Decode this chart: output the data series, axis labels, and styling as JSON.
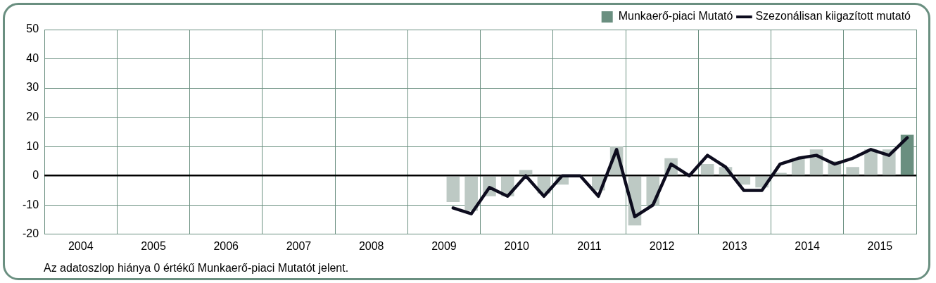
{
  "chart_data": {
    "type": "bar",
    "x": [
      2009.625,
      2009.875,
      2010.125,
      2010.375,
      2010.625,
      2010.875,
      2011.125,
      2011.375,
      2011.625,
      2011.875,
      2012.125,
      2012.375,
      2012.625,
      2012.875,
      2013.125,
      2013.375,
      2013.625,
      2013.875,
      2014.125,
      2014.375,
      2014.625,
      2014.875,
      2015.125,
      2015.375,
      2015.625,
      2015.875
    ],
    "xlim": [
      2004,
      2016
    ],
    "xticks": [
      {
        "value": 2004,
        "label": null
      },
      {
        "value": 2004.5,
        "label": "2004"
      },
      {
        "value": 2005,
        "label": null
      },
      {
        "value": 2005.5,
        "label": "2005"
      },
      {
        "value": 2006,
        "label": null
      },
      {
        "value": 2006.5,
        "label": "2006"
      },
      {
        "value": 2007,
        "label": null
      },
      {
        "value": 2007.5,
        "label": "2007"
      },
      {
        "value": 2008,
        "label": null
      },
      {
        "value": 2008.5,
        "label": "2008"
      },
      {
        "value": 2009,
        "label": null
      },
      {
        "value": 2009.5,
        "label": "2009"
      },
      {
        "value": 2010,
        "label": null
      },
      {
        "value": 2010.5,
        "label": "2010"
      },
      {
        "value": 2011,
        "label": null
      },
      {
        "value": 2011.5,
        "label": "2011"
      },
      {
        "value": 2012,
        "label": null
      },
      {
        "value": 2012.5,
        "label": "2012"
      },
      {
        "value": 2013,
        "label": null
      },
      {
        "value": 2013.5,
        "label": "2013"
      },
      {
        "value": 2014,
        "label": null
      },
      {
        "value": 2014.5,
        "label": "2014"
      },
      {
        "value": 2015,
        "label": null
      },
      {
        "value": 2015.5,
        "label": "2015"
      },
      {
        "value": 2016,
        "label": null
      }
    ],
    "series": [
      {
        "name": "Munkaerő-piaci Mutató",
        "color": "#6a8f80",
        "colors": [
          "#bdc9c4",
          "#bdc9c4",
          "#bdc9c4",
          "#bdc9c4",
          "#bdc9c4",
          "#bdc9c4",
          "#bdc9c4",
          "#bdc9c4",
          "#bdc9c4",
          "#bdc9c4",
          "#bdc9c4",
          "#bdc9c4",
          "#bdc9c4",
          "#bdc9c4",
          "#bdc9c4",
          "#bdc9c4",
          "#bdc9c4",
          "#bdc9c4",
          "#bdc9c4",
          "#bdc9c4",
          "#bdc9c4",
          "#bdc9c4",
          "#bdc9c4",
          "#bdc9c4",
          "#bdc9c4",
          "#6a8f80"
        ],
        "values": [
          -9,
          -12,
          -7,
          -7,
          2,
          -6,
          -3,
          0,
          -5,
          10,
          -17,
          -10,
          6,
          0,
          4,
          3,
          -3,
          -4,
          1,
          6,
          9,
          5,
          3,
          9,
          9,
          14
        ]
      },
      {
        "name": "Szezonálisan kiigazított mutató",
        "type": "line",
        "color": "#0d0c1e",
        "values": [
          -11,
          -13,
          -4,
          -7,
          0,
          -7,
          0,
          0,
          -7,
          9,
          -14,
          -10,
          4,
          0,
          7,
          3,
          -5,
          -5,
          4,
          6,
          7,
          4,
          6,
          9,
          7,
          13
        ]
      }
    ],
    "ylim": [
      -20,
      50
    ],
    "yticks": [
      -20,
      -10,
      0,
      10,
      20,
      30,
      40,
      50
    ],
    "grid": true,
    "legend": "top right",
    "annotations": [
      "Az adatoszlop hiánya 0 értékű Munkaerő-piaci Mutatót jelent."
    ]
  }
}
